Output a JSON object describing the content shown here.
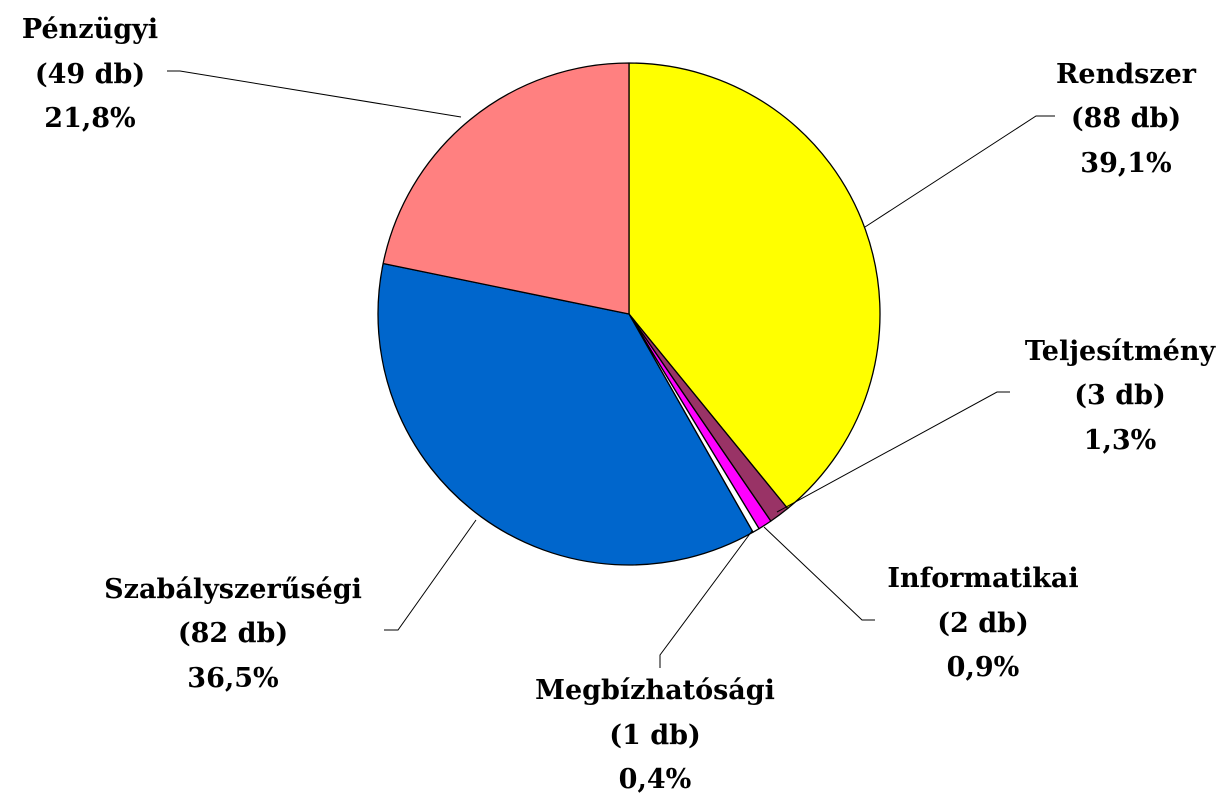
{
  "chart_data": {
    "type": "pie",
    "title": "",
    "slices": [
      {
        "name": "Rendszer",
        "count_label": "(88 db)",
        "percent_label": "39,1%",
        "count": 88,
        "percent": 39.1,
        "color": "#ffff00"
      },
      {
        "name": "Teljesítmény",
        "count_label": "(3 db)",
        "percent_label": "1,3%",
        "count": 3,
        "percent": 1.3,
        "color": "#993366"
      },
      {
        "name": "Informatikai",
        "count_label": "(2 db)",
        "percent_label": "0,9%",
        "count": 2,
        "percent": 0.9,
        "color": "#ff00ff"
      },
      {
        "name": "Megbízhatósági",
        "count_label": "(1 db)",
        "percent_label": "0,4%",
        "count": 1,
        "percent": 0.4,
        "color": "#ffffff"
      },
      {
        "name": "Szabályszerűségi",
        "count_label": "(82 db)",
        "percent_label": "36,5%",
        "count": 82,
        "percent": 36.5,
        "color": "#0066cc"
      },
      {
        "name": "Pénzügyi",
        "count_label": "(49 db)",
        "percent_label": "21,8%",
        "count": 49,
        "percent": 21.8,
        "color": "#ff8080"
      }
    ],
    "start": "12 o'clock",
    "direction": "clockwise",
    "legend": "none"
  }
}
